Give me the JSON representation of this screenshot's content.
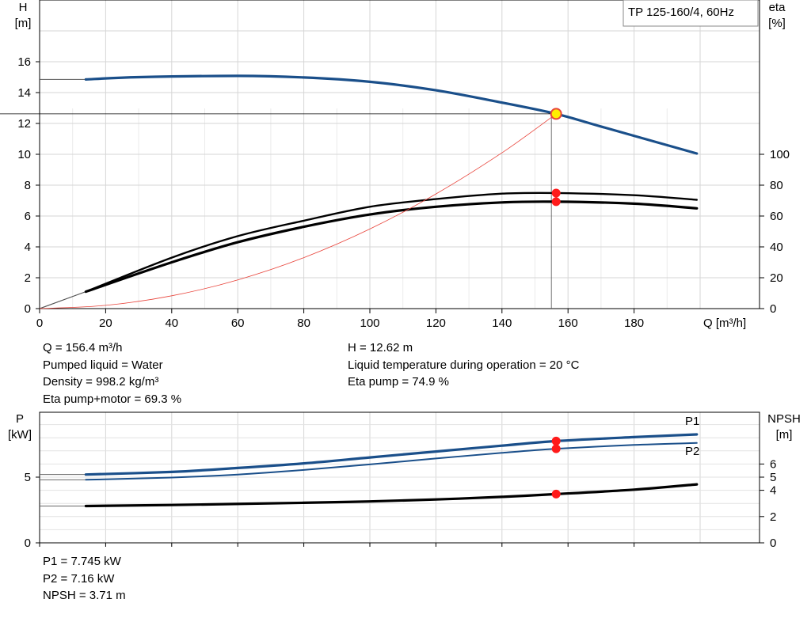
{
  "chart_data": [
    {
      "type": "line",
      "title": "TP 125-160/4, 60Hz",
      "xlabel": "Q [m³/h]",
      "ylabel_left": {
        "symbol": "H",
        "unit": "[m]"
      },
      "ylabel_right": {
        "symbol": "eta",
        "unit": "[%]"
      },
      "xlim": [
        0,
        200
      ],
      "ylim_left": [
        0,
        18
      ],
      "ylim_right": [
        0,
        180
      ],
      "x_ticks": [
        "0",
        "20",
        "40",
        "60",
        "80",
        "100",
        "120",
        "140",
        "160",
        "180"
      ],
      "y_ticks_left": [
        "0",
        "2",
        "4",
        "6",
        "8",
        "10",
        "12",
        "14",
        "16"
      ],
      "y_ticks_right": [
        "0",
        "20",
        "40",
        "60",
        "80",
        "100"
      ],
      "grid": true,
      "series": [
        {
          "color": "#1a4f8a",
          "axis": "left",
          "x": [
            0,
            14,
            30,
            60,
            80,
            100,
            120,
            140,
            156.4,
            170,
            199
          ],
          "y": [
            14.85,
            14.85,
            15.0,
            15.08,
            14.98,
            14.7,
            14.15,
            13.35,
            12.62,
            11.8,
            10.05
          ]
        },
        {
          "color": "#000000",
          "axis": "right",
          "x": [
            0,
            14,
            40,
            60,
            80,
            100,
            120,
            140,
            156.4,
            180,
            199
          ],
          "y": [
            0,
            11,
            33,
            47,
            57,
            66,
            71,
            74.5,
            74.9,
            73.5,
            70.5
          ]
        },
        {
          "color": "#000000",
          "axis": "right",
          "x": [
            0,
            14,
            40,
            60,
            80,
            100,
            120,
            140,
            156.4,
            180,
            199
          ],
          "y": [
            0,
            11,
            30,
            43,
            53,
            61,
            66,
            68.8,
            69.3,
            68,
            65
          ]
        },
        {
          "color": "#e8433a",
          "axis": "left",
          "x": [
            0,
            20,
            40,
            60,
            80,
            100,
            120,
            140,
            156.4
          ],
          "y": [
            0,
            0.21,
            0.83,
            1.86,
            3.3,
            5.16,
            7.43,
            10.1,
            12.62
          ]
        }
      ],
      "duty_point": {
        "Q": 156.4,
        "H": 12.62,
        "eta_pump": 74.9,
        "eta_pump_motor": 69.3
      }
    },
    {
      "type": "line",
      "ylabel_left": {
        "symbol": "P",
        "unit": "[kW]"
      },
      "ylabel_right": {
        "symbol": "NPSH",
        "unit": "[m]"
      },
      "xlim": [
        0,
        200
      ],
      "ylim_left": [
        0,
        10
      ],
      "ylim_right": [
        0,
        8
      ],
      "y_ticks_left": [
        "0",
        "5"
      ],
      "y_ticks_right": [
        "0",
        "2",
        "4",
        "5",
        "6"
      ],
      "grid": true,
      "series": [
        {
          "name": "P1",
          "color": "#1a4f8a",
          "axis": "left",
          "x": [
            0,
            14,
            40,
            60,
            80,
            100,
            120,
            140,
            156.4,
            180,
            199
          ],
          "y": [
            5.2,
            5.2,
            5.4,
            5.7,
            6.05,
            6.5,
            6.95,
            7.4,
            7.745,
            8.05,
            8.25
          ]
        },
        {
          "name": "P2",
          "color": "#1a4f8a",
          "axis": "left",
          "x": [
            0,
            14,
            40,
            60,
            80,
            100,
            120,
            140,
            156.4,
            180,
            199
          ],
          "y": [
            4.8,
            4.8,
            4.97,
            5.2,
            5.55,
            5.97,
            6.42,
            6.85,
            7.16,
            7.45,
            7.6
          ]
        },
        {
          "color": "#000000",
          "axis": "right",
          "x": [
            0,
            14,
            40,
            80,
            100,
            120,
            140,
            156.4,
            180,
            199
          ],
          "y": [
            2.8,
            2.8,
            2.88,
            3.05,
            3.15,
            3.3,
            3.5,
            3.71,
            4.05,
            4.45
          ]
        }
      ]
    }
  ],
  "info_top_left": [
    "Q = 156.4 m³/h",
    "Pumped liquid = Water",
    "Density = 998.2 kg/m³",
    "Eta pump+motor = 69.3 %"
  ],
  "info_top_right": [
    "H = 12.62 m",
    "Liquid temperature during operation = 20 °C",
    "Eta pump = 74.9 %"
  ],
  "info_bottom": [
    "P1 = 7.745 kW",
    "P2 = 7.16 kW",
    "NPSH = 3.71 m"
  ]
}
